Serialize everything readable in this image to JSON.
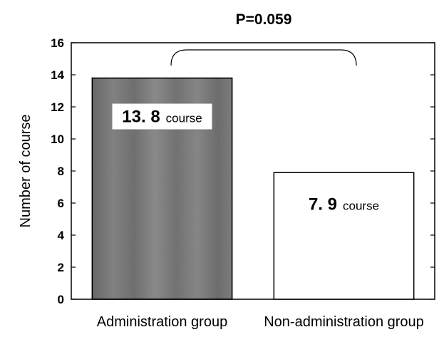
{
  "chart_data": {
    "type": "bar",
    "categories": [
      "Administration group",
      "Non-administration group"
    ],
    "values": [
      13.8,
      7.9
    ],
    "data_labels": [
      {
        "number": "13. 8",
        "unit": "course"
      },
      {
        "number": "7. 9",
        "unit": "course"
      }
    ],
    "bar_styles": [
      "dark-gray-textured",
      "white"
    ],
    "ylabel": "Number of course",
    "xlabel": "",
    "ylim": [
      0,
      16
    ],
    "yticks": [
      "0",
      "2",
      "4",
      "6",
      "8",
      "10",
      "12",
      "14",
      "16"
    ],
    "annotation": "P=0.059",
    "grid": false,
    "legend": "none"
  },
  "colors": {
    "bar_dark": "#7d7d7d",
    "bar_light": "#ffffff",
    "axis": "#000000"
  }
}
